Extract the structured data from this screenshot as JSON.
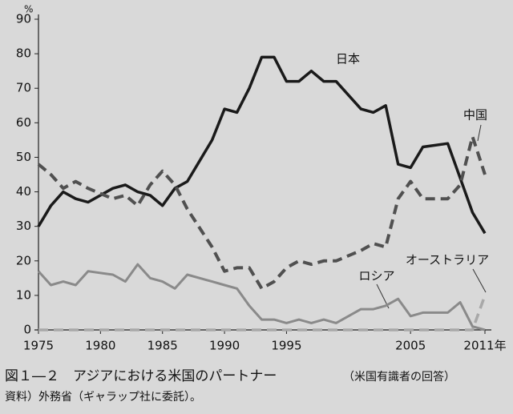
{
  "chart_data": {
    "type": "line",
    "title": "図１―２　アジアにおける米国のパートナー",
    "subtitle": "（米国有識者の回答）",
    "source": "資料）外務省（ギャラップ社に委託）。",
    "y_unit": "%",
    "x": [
      1975,
      1976,
      1977,
      1978,
      1979,
      1981,
      1982,
      1983,
      1984,
      1985,
      1986,
      1987,
      1989,
      1990,
      1991,
      1992,
      1993,
      1994,
      1995,
      1996,
      1997,
      1998,
      1999,
      2001,
      2002,
      2003,
      2004,
      2005,
      2006,
      2008,
      2009,
      2010,
      2011
    ],
    "series": [
      {
        "name": "日本",
        "color": "#1a1a1a",
        "dash": false,
        "values": [
          30,
          36,
          40,
          38,
          37,
          41,
          42,
          40,
          39,
          36,
          41,
          43,
          55,
          64,
          63,
          70,
          79,
          79,
          72,
          72,
          75,
          72,
          72,
          64,
          63,
          65,
          48,
          47,
          53,
          54,
          44,
          34,
          28
        ]
      },
      {
        "name": "中国",
        "color": "#505050",
        "dash": true,
        "values": [
          48,
          45,
          41,
          43,
          41,
          38,
          39,
          36,
          42,
          46,
          42,
          35,
          24,
          17,
          18,
          18,
          12,
          14,
          18,
          20,
          19,
          20,
          20,
          23,
          25,
          24,
          38,
          43,
          38,
          38,
          42,
          56,
          45
        ]
      },
      {
        "name": "ロシア",
        "color": "#8a8a8a",
        "dash": false,
        "values": [
          17,
          13,
          14,
          13,
          17,
          16,
          14,
          19,
          15,
          14,
          12,
          16,
          14,
          13,
          12,
          7,
          3,
          3,
          2,
          3,
          2,
          3,
          2,
          6,
          6,
          7,
          9,
          4,
          5,
          5,
          8,
          1,
          0
        ]
      },
      {
        "name": "オーストラリア",
        "color": "#a8a8a8",
        "dash": true,
        "values": [
          0,
          0,
          0,
          0,
          0,
          0,
          0,
          0,
          0,
          0,
          0,
          0,
          0,
          0,
          0,
          0,
          0,
          0,
          0,
          0,
          0,
          0,
          0,
          0,
          0,
          0,
          0,
          0,
          0,
          0,
          0,
          0,
          10
        ]
      }
    ],
    "xlim": [
      1975,
      2011
    ],
    "xticks": [
      1975,
      1980,
      1985,
      1990,
      1995,
      2005,
      {
        "value": 2011,
        "label": "2011年"
      }
    ],
    "ylim": [
      0,
      90
    ],
    "yticks": [
      0,
      10,
      20,
      30,
      40,
      50,
      60,
      70,
      80,
      90
    ]
  }
}
